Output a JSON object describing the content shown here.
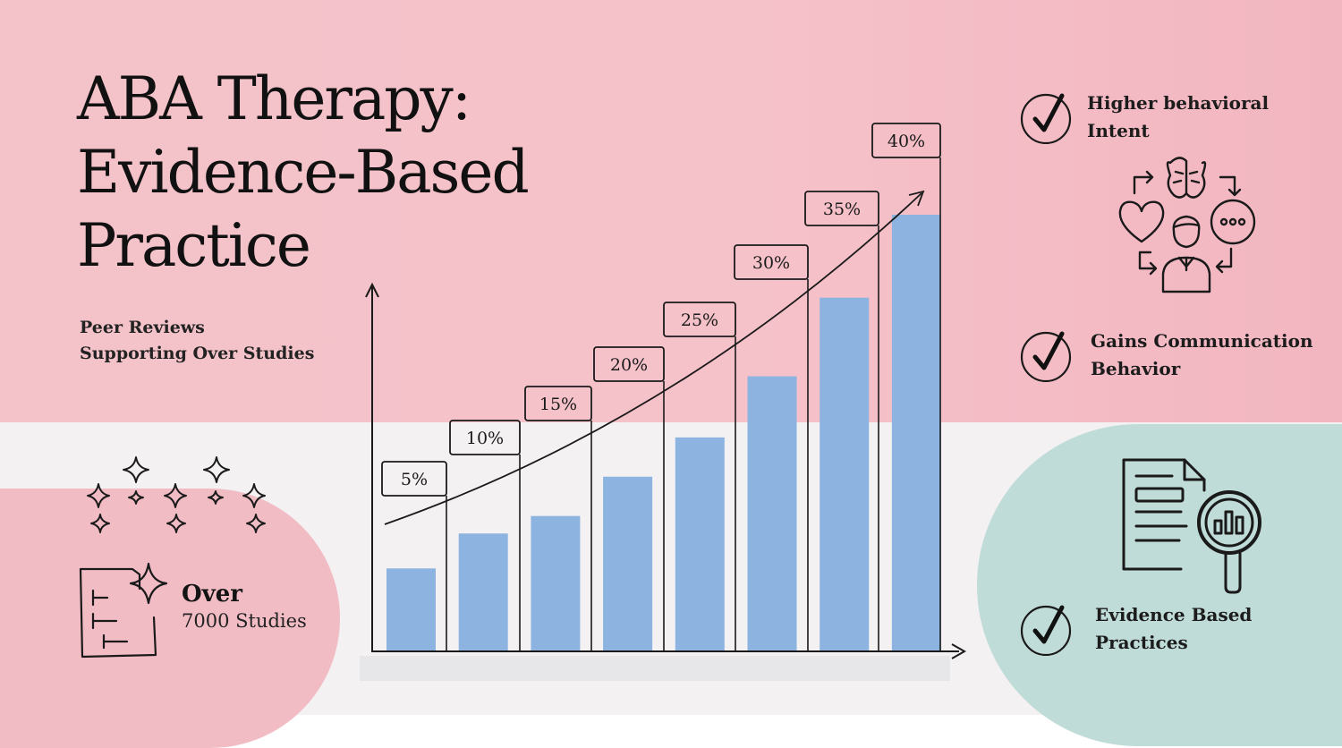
{
  "header": {
    "title_lines": [
      "ABA Therapy:",
      "Evidence-Based",
      "Practice"
    ],
    "subtitle_lines": [
      "Peer Reviews",
      "Supporting Over Studies"
    ]
  },
  "stat": {
    "heading": "Over",
    "value": "7000 Studies",
    "icon": "checklist-sparkle-icon"
  },
  "benefits": [
    {
      "lines": [
        "Higher behavioral",
        "Intent"
      ],
      "icon": "checkmark-circle-icon"
    },
    {
      "lines": [
        "Gains Communication",
        "Behavior"
      ],
      "icon": "checkmark-circle-icon"
    },
    {
      "lines": [
        "Evidence Based",
        "Practices"
      ],
      "icon": "checkmark-circle-icon"
    }
  ],
  "colors": {
    "bar": "#8db3e0",
    "pink_bg": "#f4c1c8",
    "teal_blob": "#c0dcd8",
    "ink": "#141414"
  },
  "chart_data": {
    "type": "bar",
    "categories": [
      "",
      "",
      "",
      "",
      "",
      "",
      "",
      ""
    ],
    "values": [
      5,
      10,
      15,
      20,
      25,
      30,
      35,
      40
    ],
    "data_labels": [
      "5%",
      "10%",
      "15%",
      "20%",
      "25%",
      "30%",
      "35%",
      "40%"
    ],
    "bar_heights_relative": [
      0.19,
      0.27,
      0.31,
      0.4,
      0.49,
      0.63,
      0.81,
      1.0
    ],
    "title": "",
    "xlabel": "",
    "ylabel": "",
    "ylim": [
      0,
      40
    ],
    "trend_line": true,
    "grid": false,
    "legend": "none"
  }
}
